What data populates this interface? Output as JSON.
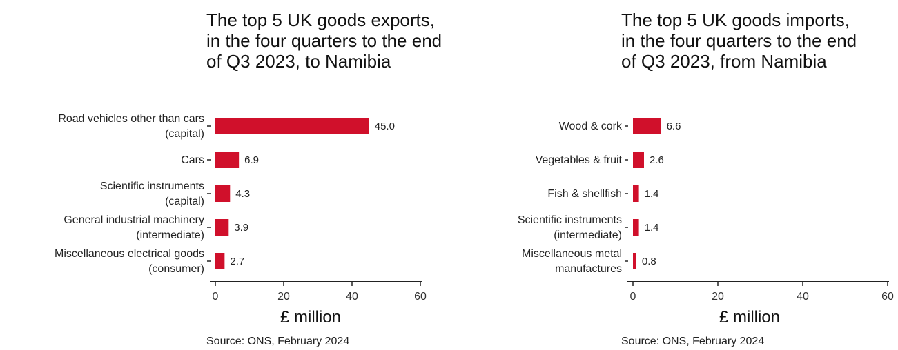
{
  "colors": {
    "bar": "#d0102b",
    "axis": "#222222",
    "text": "#222222"
  },
  "chart_data": [
    {
      "type": "bar",
      "orientation": "horizontal",
      "title": "The top 5 UK goods exports, in the four quarters to the end of Q3 2023, to Namibia",
      "xlabel": "£ million",
      "source": "Source: ONS, February 2024",
      "xlim": [
        0,
        60
      ],
      "xticks": [
        0,
        20,
        40,
        60
      ],
      "grid": false,
      "categories": [
        [
          "Road vehicles other than cars",
          "(capital)"
        ],
        [
          "Cars"
        ],
        [
          "Scientific instruments",
          "(capital)"
        ],
        [
          "General industrial machinery",
          "(intermediate)"
        ],
        [
          "Miscellaneous electrical goods",
          "(consumer)"
        ]
      ],
      "values": [
        45.0,
        6.9,
        4.3,
        3.9,
        2.7
      ],
      "value_labels": [
        "45.0",
        "6.9",
        "4.3",
        "3.9",
        "2.7"
      ]
    },
    {
      "type": "bar",
      "orientation": "horizontal",
      "title": "The top 5 UK goods imports, in the four quarters to the end of Q3 2023, from Namibia",
      "xlabel": "£ million",
      "source": "Source: ONS, February 2024",
      "xlim": [
        0,
        60
      ],
      "xticks": [
        0,
        20,
        40,
        60
      ],
      "grid": false,
      "categories": [
        [
          "Wood & cork"
        ],
        [
          "Vegetables & fruit"
        ],
        [
          "Fish & shellfish"
        ],
        [
          "Scientific instruments",
          "(intermediate)"
        ],
        [
          "Miscellaneous metal",
          "manufactures"
        ]
      ],
      "values": [
        6.6,
        2.6,
        1.4,
        1.4,
        0.8
      ],
      "value_labels": [
        "6.6",
        "2.6",
        "1.4",
        "1.4",
        "0.8"
      ]
    }
  ]
}
